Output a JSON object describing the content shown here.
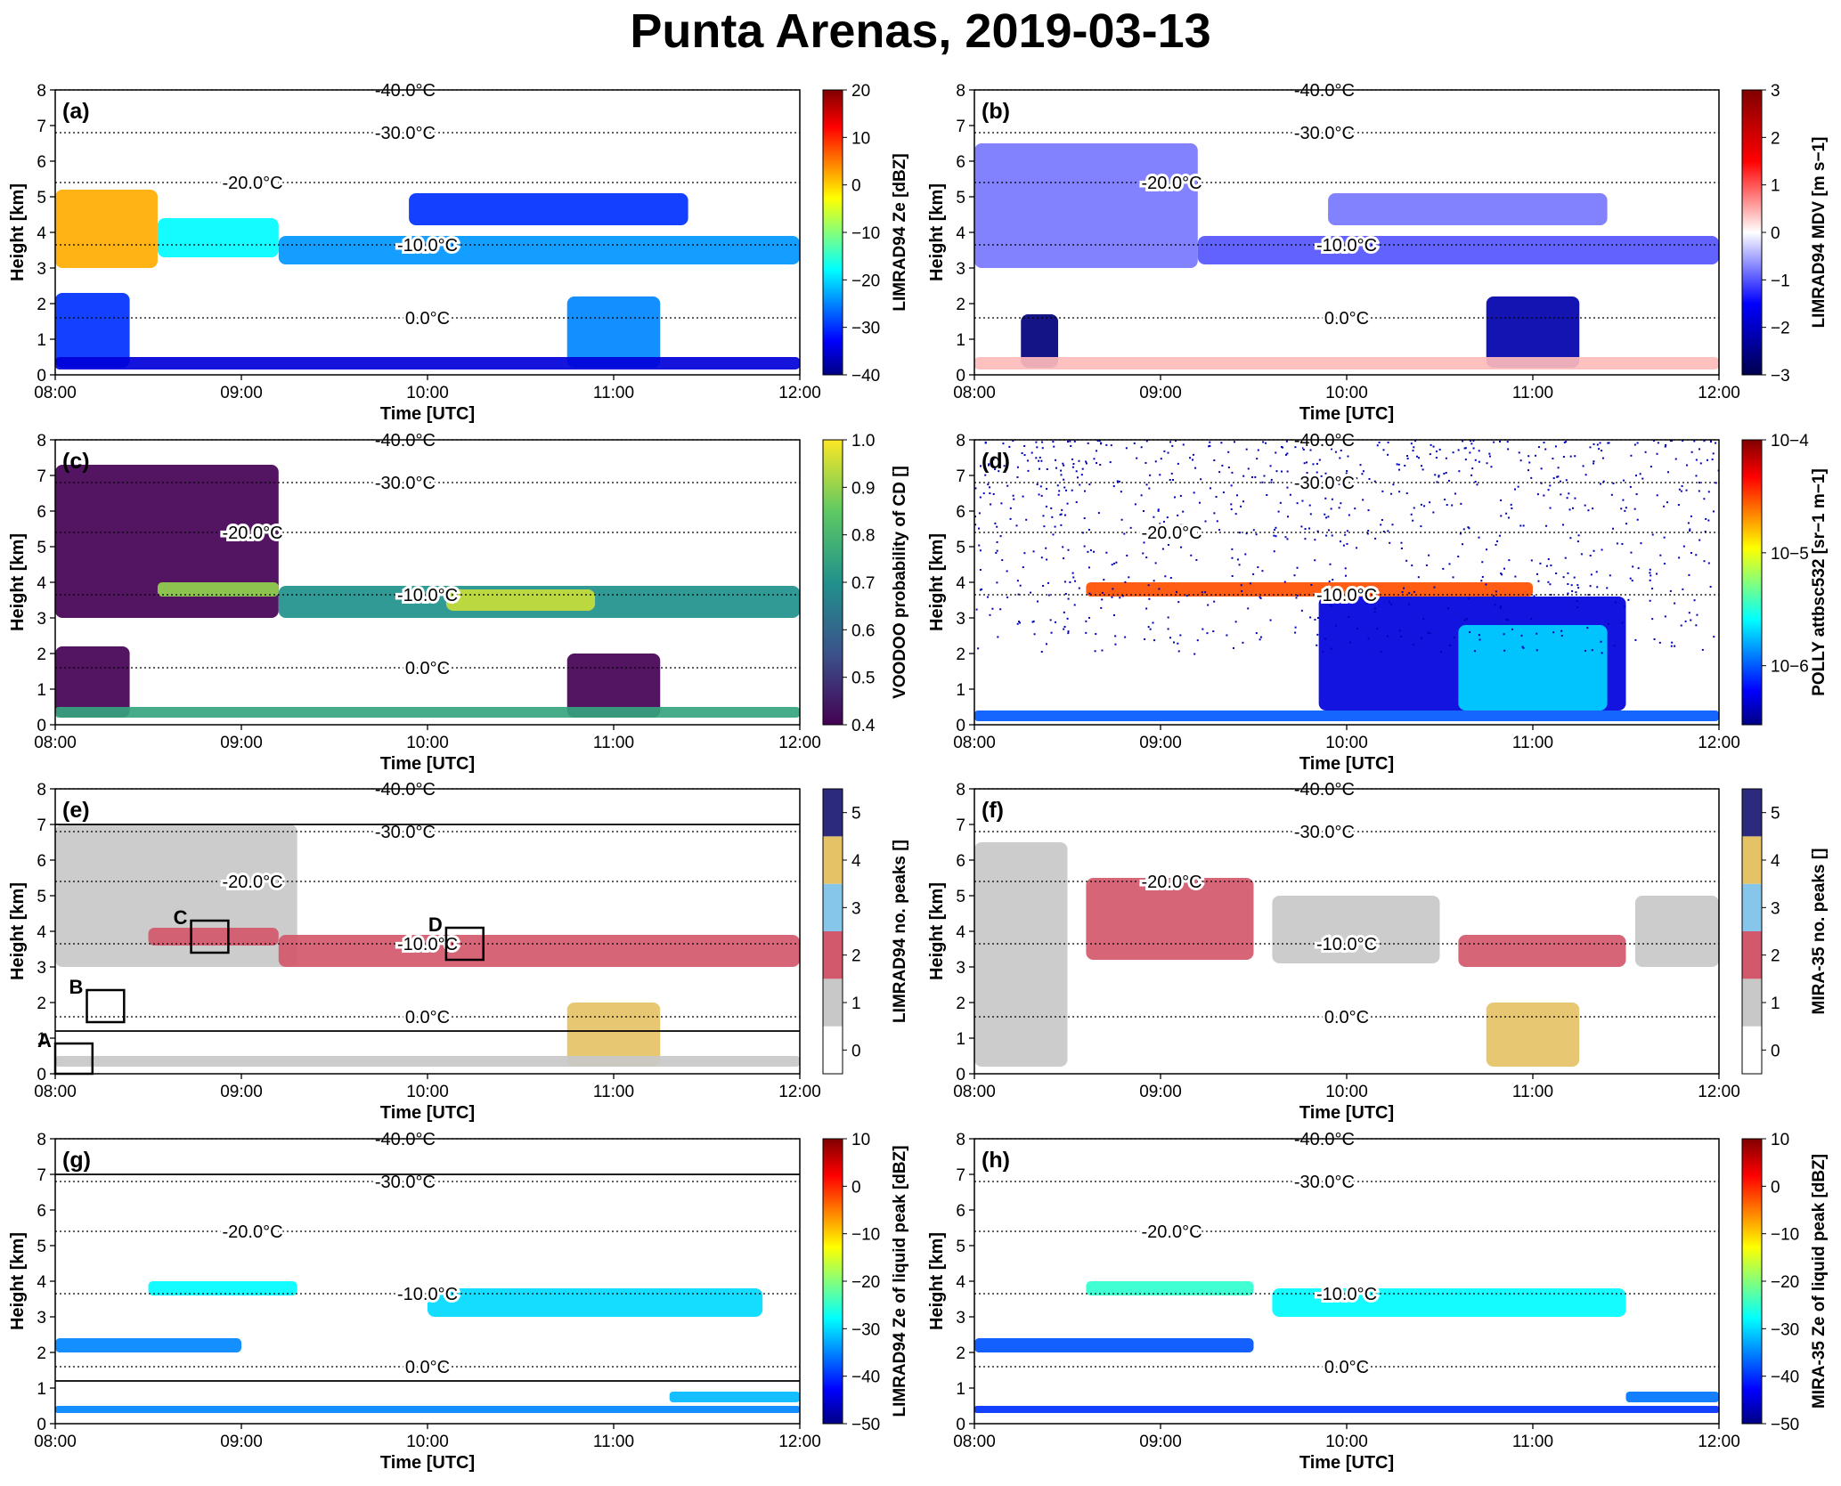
{
  "title": "Punta Arenas, 2019-03-13",
  "shared": {
    "xlabel": "Time [UTC]",
    "ylabel": "Height [km]",
    "xticks": [
      "08:00",
      "09:00",
      "10:00",
      "11:00",
      "12:00"
    ],
    "xlim_hours": [
      8,
      12
    ],
    "yticks": [
      "0",
      "1",
      "2",
      "3",
      "4",
      "5",
      "6",
      "7",
      "8"
    ],
    "ylim_km": [
      0,
      8
    ]
  },
  "chart_data": [
    {
      "panel": "(a)",
      "type": "heatmap",
      "colorbar": {
        "label": "LIMRAD94 Ze [dBZ]",
        "ticks": [
          "20",
          "10",
          "0",
          "−10",
          "−20",
          "−30",
          "−40"
        ],
        "range": [
          -40,
          20
        ],
        "colormap": "jet"
      },
      "isotherms": [
        {
          "label": "-40.0°C",
          "km": 8.0
        },
        {
          "label": "-30.0°C",
          "km": 6.8
        },
        {
          "label": "-20.0°C",
          "km": 5.4
        },
        {
          "label": "-10.0°C",
          "km": 3.65
        },
        {
          "label": "0.0°C",
          "km": 1.6
        }
      ],
      "regions": [
        {
          "t": [
            8.0,
            8.55
          ],
          "km": [
            3.0,
            5.2
          ],
          "value": 2
        },
        {
          "t": [
            8.55,
            9.2
          ],
          "km": [
            3.3,
            4.4
          ],
          "value": -18
        },
        {
          "t": [
            9.2,
            12.0
          ],
          "km": [
            3.1,
            3.9
          ],
          "value": -24
        },
        {
          "t": [
            9.9,
            11.4
          ],
          "km": [
            4.2,
            5.1
          ],
          "value": -30
        },
        {
          "t": [
            8.0,
            8.4
          ],
          "km": [
            0.2,
            2.3
          ],
          "value": -30
        },
        {
          "t": [
            10.75,
            11.25
          ],
          "km": [
            0.2,
            2.2
          ],
          "value": -25
        },
        {
          "t": [
            8.0,
            12.0
          ],
          "km": [
            0.15,
            0.5
          ],
          "value": -35
        }
      ]
    },
    {
      "panel": "(b)",
      "type": "heatmap",
      "colorbar": {
        "label": "LIMRAD94 MDV [m s−1]",
        "ticks": [
          "3",
          "2",
          "1",
          "0",
          "−1",
          "−2",
          "−3"
        ],
        "range": [
          -3,
          3
        ],
        "colormap": "seismic"
      },
      "isotherms": [
        {
          "label": "-40.0°C",
          "km": 8.0
        },
        {
          "label": "-30.0°C",
          "km": 6.8
        },
        {
          "label": "-20.0°C",
          "km": 5.4
        },
        {
          "label": "-10.0°C",
          "km": 3.65
        },
        {
          "label": "0.0°C",
          "km": 1.6
        }
      ],
      "regions": [
        {
          "t": [
            8.0,
            9.2
          ],
          "km": [
            3.0,
            6.5
          ],
          "value": -0.8
        },
        {
          "t": [
            9.2,
            12.0
          ],
          "km": [
            3.1,
            3.9
          ],
          "value": -1.0
        },
        {
          "t": [
            9.9,
            11.4
          ],
          "km": [
            4.2,
            5.1
          ],
          "value": -0.8
        },
        {
          "t": [
            8.25,
            8.45
          ],
          "km": [
            0.2,
            1.7
          ],
          "value": -2.6
        },
        {
          "t": [
            10.75,
            11.25
          ],
          "km": [
            0.2,
            2.2
          ],
          "value": -2.2
        },
        {
          "t": [
            8.0,
            12.0
          ],
          "km": [
            0.15,
            0.5
          ],
          "value": 0.4
        }
      ]
    },
    {
      "panel": "(c)",
      "type": "heatmap",
      "colorbar": {
        "label": "VOODOO probability of CD []",
        "ticks": [
          "1.0",
          "0.9",
          "0.8",
          "0.7",
          "0.6",
          "0.5",
          "0.4"
        ],
        "range": [
          0.4,
          1.0
        ],
        "colormap": "viridis"
      },
      "isotherms": [
        {
          "label": "-40.0°C",
          "km": 8.0
        },
        {
          "label": "-30.0°C",
          "km": 6.8
        },
        {
          "label": "-20.0°C",
          "km": 5.4
        },
        {
          "label": "-10.0°C",
          "km": 3.65
        },
        {
          "label": "0.0°C",
          "km": 1.6
        }
      ],
      "regions": [
        {
          "t": [
            8.0,
            9.2
          ],
          "km": [
            3.0,
            7.3
          ],
          "value": 0.4
        },
        {
          "t": [
            8.55,
            9.2
          ],
          "km": [
            3.6,
            4.0
          ],
          "value": 0.9
        },
        {
          "t": [
            9.2,
            12.0
          ],
          "km": [
            3.0,
            3.9
          ],
          "value": 0.7
        },
        {
          "t": [
            10.1,
            10.9
          ],
          "km": [
            3.2,
            3.8
          ],
          "value": 0.95
        },
        {
          "t": [
            8.0,
            8.4
          ],
          "km": [
            0.2,
            2.2
          ],
          "value": 0.4
        },
        {
          "t": [
            10.75,
            11.25
          ],
          "km": [
            0.2,
            2.0
          ],
          "value": 0.4
        },
        {
          "t": [
            8.0,
            12.0
          ],
          "km": [
            0.2,
            0.5
          ],
          "value": 0.75
        }
      ]
    },
    {
      "panel": "(d)",
      "type": "heatmap",
      "colorbar": {
        "label": "POLLY attbsc532 [sr−1 m−1]",
        "ticks": [
          "10−4",
          "10−5",
          "10−6"
        ],
        "scale": "log",
        "range": [
          3e-07,
          0.0001
        ],
        "colormap": "jet"
      },
      "isotherms": [
        {
          "label": "-40.0°C",
          "km": 8.0
        },
        {
          "label": "-30.0°C",
          "km": 6.8
        },
        {
          "label": "-20.0°C",
          "km": 5.4
        },
        {
          "label": "-10.0°C",
          "km": 3.65
        }
      ],
      "regions": [
        {
          "t": [
            8.0,
            12.0
          ],
          "km": [
            0.1,
            0.4
          ],
          "value": 1e-06
        },
        {
          "t": [
            9.85,
            11.5
          ],
          "km": [
            0.4,
            3.6
          ],
          "value": 5e-07
        },
        {
          "t": [
            10.6,
            11.4
          ],
          "km": [
            0.4,
            2.8
          ],
          "value": 2e-06
        },
        {
          "t": [
            8.6,
            11.0
          ],
          "km": [
            3.6,
            4.0
          ],
          "value": 3e-05
        },
        {
          "t": [
            8.0,
            12.0
          ],
          "km": [
            2.0,
            8.0
          ],
          "value": 4e-07,
          "note": "noise"
        }
      ]
    },
    {
      "panel": "(e)",
      "type": "heatmap",
      "colorbar": {
        "label": "LIMRAD94 no. peaks []",
        "ticks": [
          "5",
          "4",
          "3",
          "2",
          "1",
          "0"
        ],
        "range": [
          0,
          5
        ],
        "discrete": [
          "#ffffff",
          "#c8c8c8",
          "#d2596b",
          "#87c6eb",
          "#e6c267",
          "#2c2a7d"
        ]
      },
      "isotherms": [
        {
          "label": "-40.0°C",
          "km": 8.0
        },
        {
          "label": "-30.0°C",
          "km": 6.8
        },
        {
          "label": "-20.0°C",
          "km": 5.4
        },
        {
          "label": "-10.0°C",
          "km": 3.65
        },
        {
          "label": "0.0°C",
          "km": 1.6
        }
      ],
      "boundaries_km": [
        7.0,
        1.2
      ],
      "boxes": [
        "A",
        "B",
        "C",
        "D"
      ],
      "regions": [
        {
          "t": [
            8.0,
            9.3
          ],
          "km": [
            3.0,
            7.0
          ],
          "value": 1
        },
        {
          "t": [
            8.5,
            9.2
          ],
          "km": [
            3.6,
            4.1
          ],
          "value": 2
        },
        {
          "t": [
            9.2,
            12.0
          ],
          "km": [
            3.0,
            3.9
          ],
          "value": 2
        },
        {
          "t": [
            10.75,
            11.25
          ],
          "km": [
            0.2,
            2.0
          ],
          "value": 4
        },
        {
          "t": [
            8.0,
            12.0
          ],
          "km": [
            0.2,
            0.5
          ],
          "value": 1
        }
      ]
    },
    {
      "panel": "(f)",
      "type": "heatmap",
      "colorbar": {
        "label": "MIRA-35 no. peaks []",
        "ticks": [
          "5",
          "4",
          "3",
          "2",
          "1",
          "0"
        ],
        "range": [
          0,
          5
        ],
        "discrete": [
          "#ffffff",
          "#c8c8c8",
          "#d2596b",
          "#87c6eb",
          "#e6c267",
          "#2c2a7d"
        ]
      },
      "isotherms": [
        {
          "label": "-40.0°C",
          "km": 8.0
        },
        {
          "label": "-30.0°C",
          "km": 6.8
        },
        {
          "label": "-20.0°C",
          "km": 5.4
        },
        {
          "label": "-10.0°C",
          "km": 3.65
        },
        {
          "label": "0.0°C",
          "km": 1.6
        }
      ],
      "regions": [
        {
          "t": [
            8.0,
            8.5
          ],
          "km": [
            0.2,
            6.5
          ],
          "value": 1
        },
        {
          "t": [
            8.6,
            9.5
          ],
          "km": [
            3.2,
            5.5
          ],
          "value": 2
        },
        {
          "t": [
            9.6,
            10.5
          ],
          "km": [
            3.1,
            5.0
          ],
          "value": 1
        },
        {
          "t": [
            10.6,
            11.5
          ],
          "km": [
            3.0,
            3.9
          ],
          "value": 2
        },
        {
          "t": [
            10.75,
            11.25
          ],
          "km": [
            0.2,
            2.0
          ],
          "value": 4
        },
        {
          "t": [
            11.55,
            12.0
          ],
          "km": [
            3.0,
            5.0
          ],
          "value": 1
        }
      ]
    },
    {
      "panel": "(g)",
      "type": "heatmap",
      "colorbar": {
        "label": "LIMRAD94 Ze of liquid peak [dBZ]",
        "ticks": [
          "10",
          "0",
          "−10",
          "−20",
          "−30",
          "−40",
          "−50"
        ],
        "range": [
          -50,
          10
        ],
        "colormap": "jet"
      },
      "isotherms": [
        {
          "label": "-40.0°C",
          "km": 8.0
        },
        {
          "label": "-30.0°C",
          "km": 6.8
        },
        {
          "label": "-20.0°C",
          "km": 5.4
        },
        {
          "label": "-10.0°C",
          "km": 3.65
        },
        {
          "label": "0.0°C",
          "km": 1.6
        }
      ],
      "boundaries_km": [
        7.0,
        1.2
      ],
      "regions": [
        {
          "t": [
            8.5,
            9.3
          ],
          "km": [
            3.6,
            4.0
          ],
          "value": -28
        },
        {
          "t": [
            10.0,
            11.8
          ],
          "km": [
            3.0,
            3.8
          ],
          "value": -30
        },
        {
          "t": [
            8.0,
            9.0
          ],
          "km": [
            2.0,
            2.4
          ],
          "value": -35
        },
        {
          "t": [
            8.0,
            12.0
          ],
          "km": [
            0.3,
            0.5
          ],
          "value": -35
        },
        {
          "t": [
            11.3,
            12.0
          ],
          "km": [
            0.6,
            0.9
          ],
          "value": -32
        }
      ]
    },
    {
      "panel": "(h)",
      "type": "heatmap",
      "colorbar": {
        "label": "MIRA-35 Ze of liquid peak [dBZ]",
        "ticks": [
          "10",
          "0",
          "−10",
          "−20",
          "−30",
          "−40",
          "−50"
        ],
        "range": [
          -50,
          10
        ],
        "colormap": "jet"
      },
      "isotherms": [
        {
          "label": "-40.0°C",
          "km": 8.0
        },
        {
          "label": "-30.0°C",
          "km": 6.8
        },
        {
          "label": "-20.0°C",
          "km": 5.4
        },
        {
          "label": "-10.0°C",
          "km": 3.65
        },
        {
          "label": "0.0°C",
          "km": 1.6
        }
      ],
      "regions": [
        {
          "t": [
            8.6,
            9.5
          ],
          "km": [
            3.6,
            4.0
          ],
          "value": -25
        },
        {
          "t": [
            9.6,
            11.5
          ],
          "km": [
            3.0,
            3.8
          ],
          "value": -28
        },
        {
          "t": [
            8.0,
            9.5
          ],
          "km": [
            2.0,
            2.4
          ],
          "value": -38
        },
        {
          "t": [
            8.0,
            12.0
          ],
          "km": [
            0.3,
            0.5
          ],
          "value": -40
        },
        {
          "t": [
            11.5,
            12.0
          ],
          "km": [
            0.6,
            0.9
          ],
          "value": -36
        }
      ]
    }
  ]
}
